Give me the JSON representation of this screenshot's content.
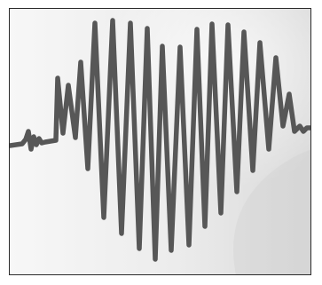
{
  "image": {
    "colors": {
      "background_light": "#f7f7f7",
      "background_mid": "#e9e9e9",
      "background_dark": "#d7d7d7",
      "stroke": "#575757",
      "frame_border": "#2b2b2b"
    },
    "icons": [
      "heart-waveform-illustration"
    ]
  }
}
